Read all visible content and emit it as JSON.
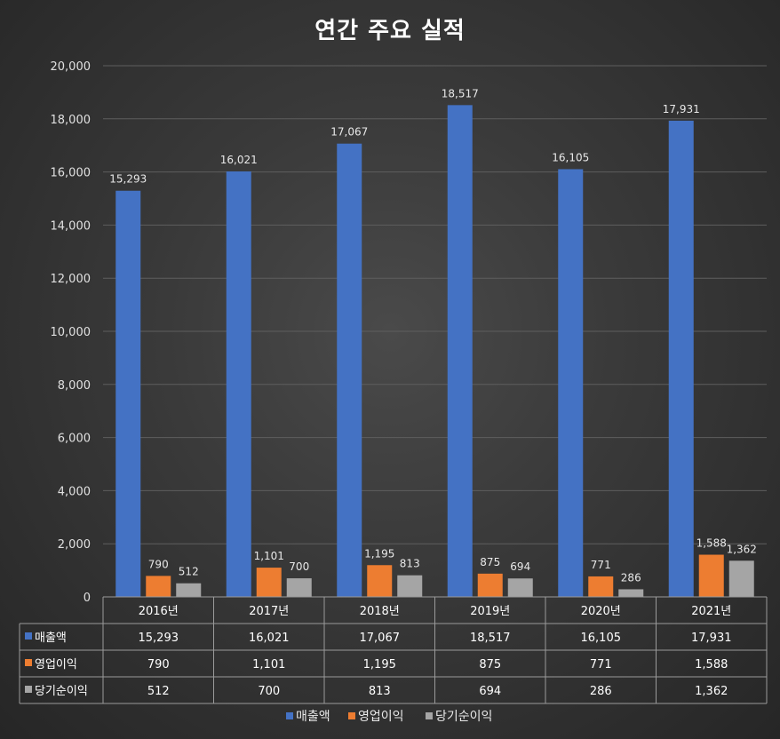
{
  "chart_data": {
    "type": "bar",
    "title": "연간 주요 실적",
    "categories": [
      "2016년",
      "2017년",
      "2018년",
      "2019년",
      "2020년",
      "2021년"
    ],
    "series": [
      {
        "name": "매출액",
        "values": [
          15293,
          16021,
          17067,
          18517,
          16105,
          17931
        ],
        "labels": [
          "15,293",
          "16,021",
          "17,067",
          "18,517",
          "16,105",
          "17,931"
        ],
        "color": "#4472c4"
      },
      {
        "name": "영업이익",
        "values": [
          790,
          1101,
          1195,
          875,
          771,
          1588
        ],
        "labels": [
          "790",
          "1,101",
          "1,195",
          "875",
          "771",
          "1,588"
        ],
        "color": "#ed7d31"
      },
      {
        "name": "당기순이익",
        "values": [
          512,
          700,
          813,
          694,
          286,
          1362
        ],
        "labels": [
          "512",
          "700",
          "813",
          "694",
          "286",
          "1,362"
        ],
        "color": "#a5a5a5"
      }
    ],
    "ylim": [
      0,
      20000
    ],
    "yticks": [
      0,
      2000,
      4000,
      6000,
      8000,
      10000,
      12000,
      14000,
      16000,
      18000,
      20000
    ],
    "ytick_labels": [
      "0",
      "2,000",
      "4,000",
      "6,000",
      "8,000",
      "10,000",
      "12,000",
      "14,000",
      "16,000",
      "18,000",
      "20,000"
    ],
    "grid": true,
    "legend_placement": "bottom",
    "data_table": true
  }
}
